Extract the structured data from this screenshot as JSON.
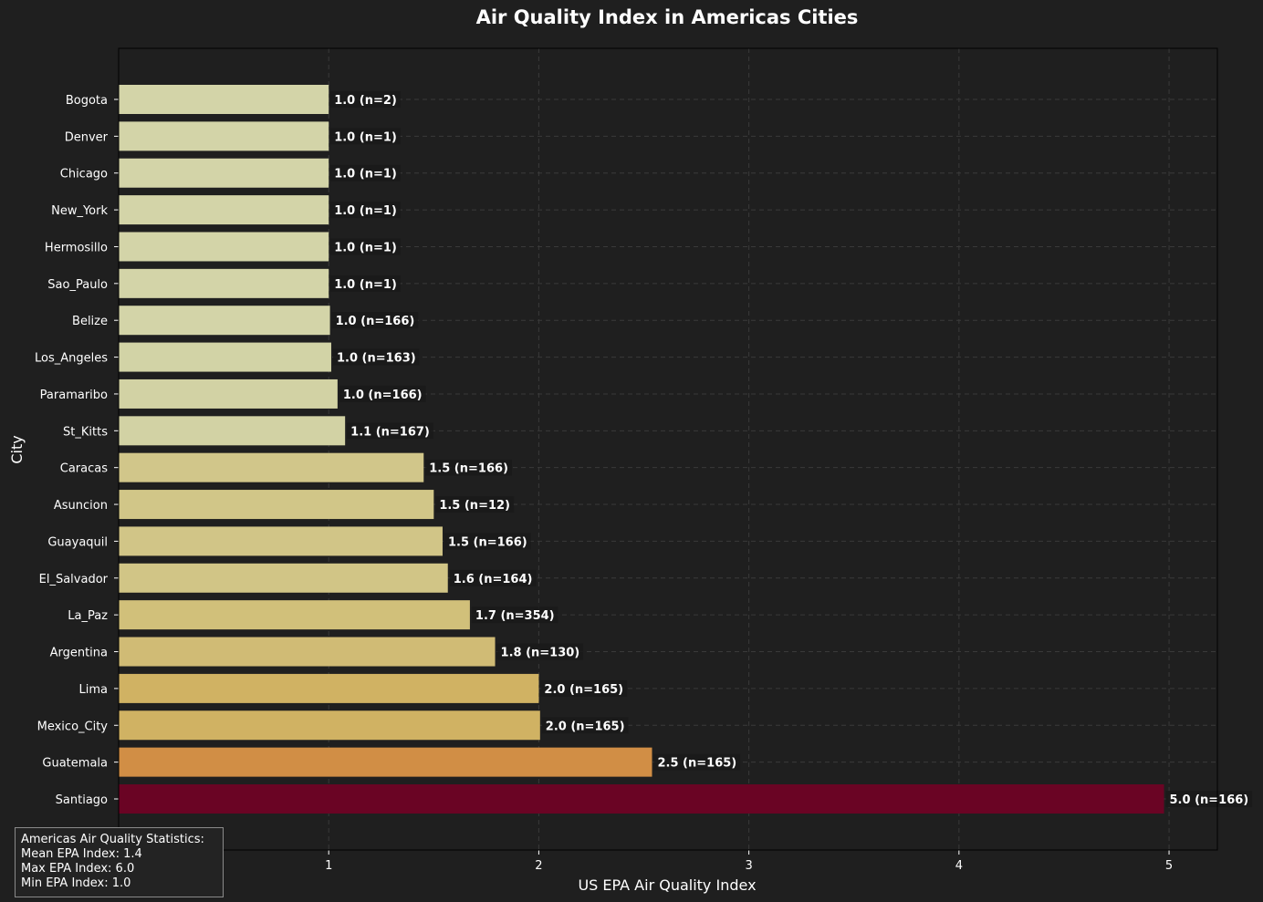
{
  "chart_data": {
    "type": "bar",
    "orientation": "horizontal",
    "title": "Air Quality Index in Americas Cities",
    "xlabel": "US EPA Air Quality Index",
    "ylabel": "City",
    "xlim": [
      0.0,
      5.23
    ],
    "xticks": [
      1,
      2,
      3,
      4,
      5
    ],
    "grid": true,
    "categories": [
      "Bogota",
      "Denver",
      "Chicago",
      "New_York",
      "Hermosillo",
      "Sao_Paulo",
      "Belize",
      "Los_Angeles",
      "Paramaribo",
      "St_Kitts",
      "Caracas",
      "Asuncion",
      "Guayaquil",
      "El_Salvador",
      "La_Paz",
      "Argentina",
      "Lima",
      "Mexico_City",
      "Guatemala",
      "Santiago"
    ],
    "values": [
      1.0,
      1.0,
      1.0,
      1.0,
      1.0,
      1.0,
      1.006,
      1.012,
      1.042,
      1.078,
      1.452,
      1.5,
      1.542,
      1.567,
      1.672,
      1.792,
      2.0,
      2.006,
      2.539,
      4.976
    ],
    "data_labels": [
      "1.0 (n=2)",
      "1.0 (n=1)",
      "1.0 (n=1)",
      "1.0 (n=1)",
      "1.0 (n=1)",
      "1.0 (n=1)",
      "1.0 (n=166)",
      "1.0 (n=163)",
      "1.0 (n=166)",
      "1.1 (n=167)",
      "1.5 (n=166)",
      "1.5 (n=12)",
      "1.5 (n=166)",
      "1.6 (n=164)",
      "1.7 (n=354)",
      "1.8 (n=130)",
      "2.0 (n=165)",
      "2.0 (n=165)",
      "2.5 (n=165)",
      "5.0 (n=166)"
    ],
    "colors": [
      "#d3d4a8",
      "#d3d4a8",
      "#d3d4a8",
      "#d3d4a8",
      "#d3d4a8",
      "#d3d4a8",
      "#d3d4a8",
      "#d2d3a6",
      "#d2d2a4",
      "#d2d2a4",
      "#d1c68a",
      "#d1c688",
      "#d1c587",
      "#d1c586",
      "#d1c07a",
      "#d0bb75",
      "#d0b263",
      "#d0b263",
      "#d18e45",
      "#6a0424"
    ],
    "background_color": "#1f1f1f",
    "grid_color": "#3a3a3a",
    "text_color": "#ffffff"
  },
  "stats": {
    "title": "Americas Air Quality Statistics:",
    "lines": [
      "Mean EPA Index: 1.4",
      "Max EPA Index: 6.0",
      "Min EPA Index: 1.0"
    ]
  }
}
